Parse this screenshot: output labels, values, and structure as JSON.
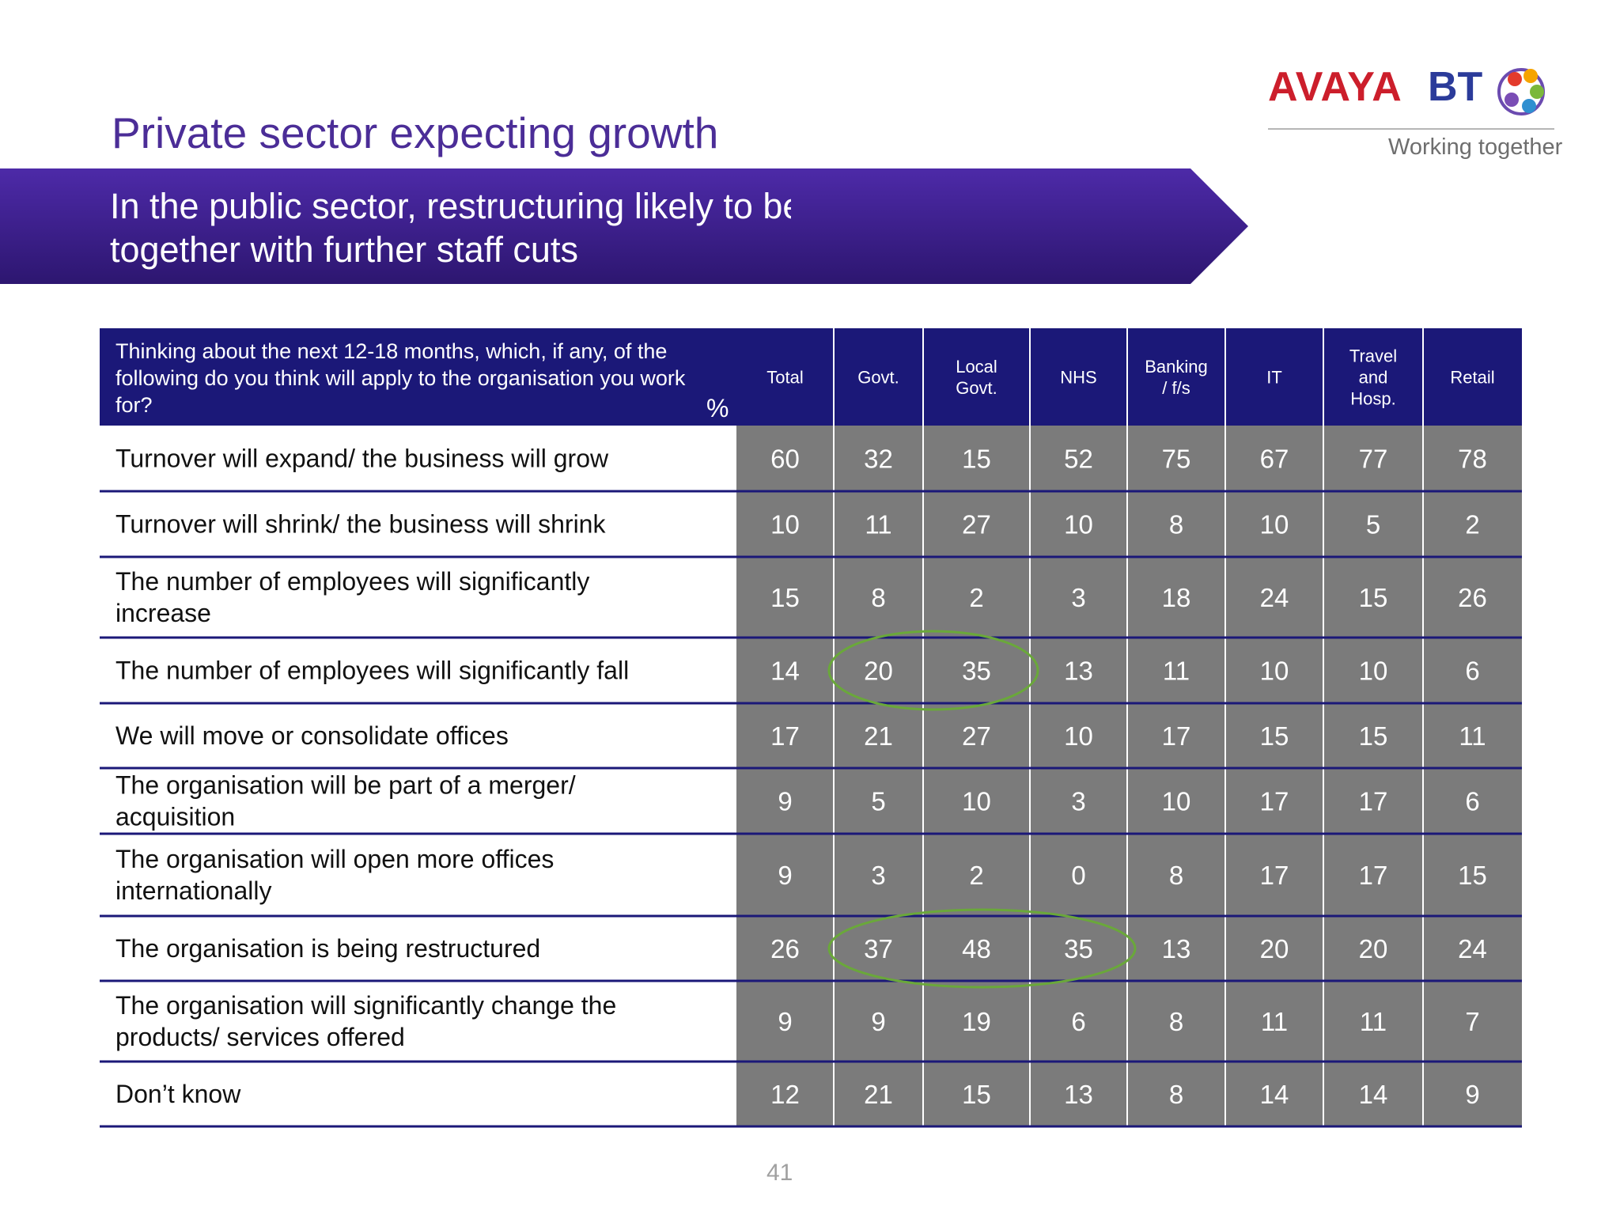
{
  "slide": {
    "title": "Private sector expecting growth",
    "subtitle_line1": "In the public sector, restructuring likely to be on-going,",
    "subtitle_line2": "together with further staff cuts",
    "page_number": "41"
  },
  "logo": {
    "brand1": "AVAYA",
    "brand2": "BT",
    "tagline": "Working together"
  },
  "colors": {
    "header_bg": "#1b1878",
    "cell_bg": "#7b7b7b",
    "grid_line": "#1b1878",
    "title": "#4b2d97",
    "highlight_ellipse": "#6aa83a"
  },
  "chart_data": {
    "type": "table",
    "question": "Thinking about the next 12-18 months, which, if any, of the following do you think will apply to the organisation you work for?",
    "unit": "%",
    "columns": [
      "Total",
      "Govt.",
      "Local Govt.",
      "NHS",
      "Banking / f/s",
      "IT",
      "Travel and Hosp.",
      "Retail"
    ],
    "rows": [
      {
        "label": "Turnover will expand/ the business will grow",
        "values": [
          60,
          32,
          15,
          52,
          75,
          67,
          77,
          78
        ]
      },
      {
        "label": "Turnover will shrink/ the business will shrink",
        "values": [
          10,
          11,
          27,
          10,
          8,
          10,
          5,
          2
        ]
      },
      {
        "label": "The number of employees will significantly increase",
        "values": [
          15,
          8,
          2,
          3,
          18,
          24,
          15,
          26
        ]
      },
      {
        "label": "The number of employees will significantly fall",
        "values": [
          14,
          20,
          35,
          13,
          11,
          10,
          10,
          6
        ]
      },
      {
        "label": "We will move or consolidate offices",
        "values": [
          17,
          21,
          27,
          10,
          17,
          15,
          15,
          11
        ]
      },
      {
        "label": "The organisation will be part of a merger/ acquisition",
        "values": [
          9,
          5,
          10,
          3,
          10,
          17,
          17,
          6
        ]
      },
      {
        "label": "The organisation will open more offices internationally",
        "values": [
          9,
          3,
          2,
          0,
          8,
          17,
          17,
          15
        ]
      },
      {
        "label": "The organisation is being restructured",
        "values": [
          26,
          37,
          48,
          35,
          13,
          20,
          20,
          24
        ]
      },
      {
        "label": "The organisation will significantly change the products/ services offered",
        "values": [
          9,
          9,
          19,
          6,
          8,
          11,
          11,
          7
        ]
      },
      {
        "label": "Don’t know",
        "values": [
          12,
          21,
          15,
          13,
          8,
          14,
          14,
          9
        ]
      }
    ],
    "highlights": [
      {
        "row": 3,
        "columns": [
          1,
          2
        ]
      },
      {
        "row": 7,
        "columns": [
          1,
          2,
          3
        ]
      }
    ]
  }
}
